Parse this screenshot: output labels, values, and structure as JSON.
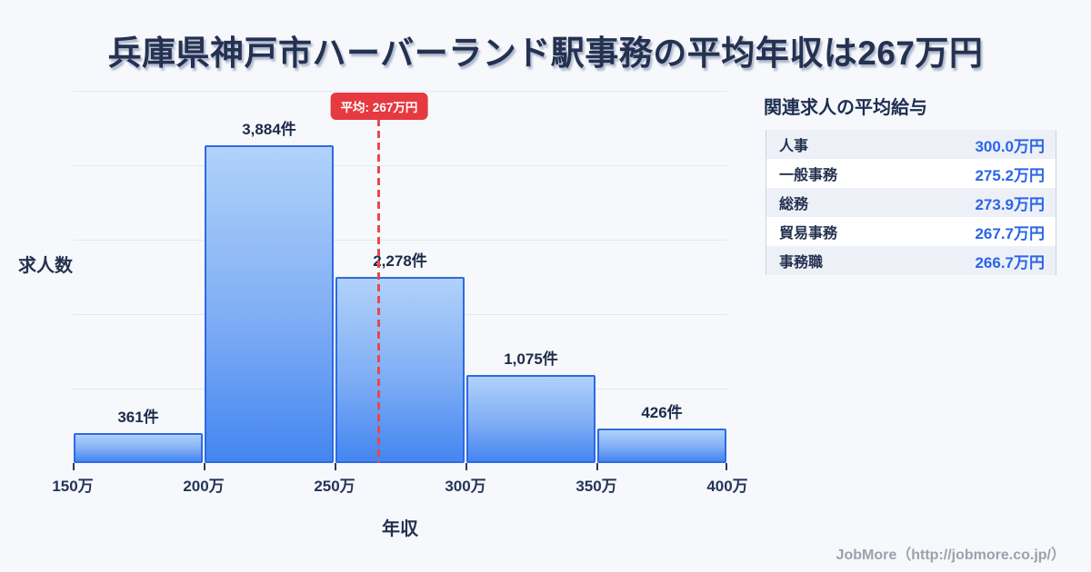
{
  "title": "兵庫県神戸市ハーバーランド駅事務の平均年収は267万円",
  "chart_data": {
    "type": "bar",
    "title": "兵庫県神戸市ハーバーランド駅事務の平均年収は267万円",
    "xlabel": "年収",
    "ylabel": "求人数",
    "bin_edges_labels": [
      "150万",
      "200万",
      "250万",
      "300万",
      "350万",
      "400万"
    ],
    "bin_edges_values": [
      150,
      200,
      250,
      300,
      350,
      400
    ],
    "values": [
      361,
      3884,
      2278,
      1075,
      426
    ],
    "bar_labels": [
      "361件",
      "3,884件",
      "2,278件",
      "1,075件",
      "426件"
    ],
    "unit": "件",
    "mean_value": 267,
    "mean_label": "平均: 267万円",
    "x_range": [
      150,
      400
    ],
    "ylim": [
      0,
      4550
    ],
    "grid": true,
    "legend": false
  },
  "panel": {
    "title": "関連求人の平均給与",
    "rows": [
      {
        "label": "人事",
        "value": "300.0万円"
      },
      {
        "label": "一般事務",
        "value": "275.2万円"
      },
      {
        "label": "総務",
        "value": "273.9万円"
      },
      {
        "label": "貿易事務",
        "value": "267.7万円"
      },
      {
        "label": "事務職",
        "value": "266.7万円"
      }
    ]
  },
  "footer": {
    "credit": "JobMore（http://jobmore.co.jp/）"
  },
  "colors": {
    "background": "#f7f8fb",
    "title_text": "#243150",
    "bar_border": "#2d6ae3",
    "bar_gradient_top": "#b0d2fa",
    "bar_gradient_bottom": "#4486f0",
    "gridline": "#e3e8f1",
    "mean_red": "#e63940",
    "table_value_blue": "#2a65e8",
    "table_stripe": "#edf0f7",
    "footer_gray": "#9aa2ad"
  }
}
